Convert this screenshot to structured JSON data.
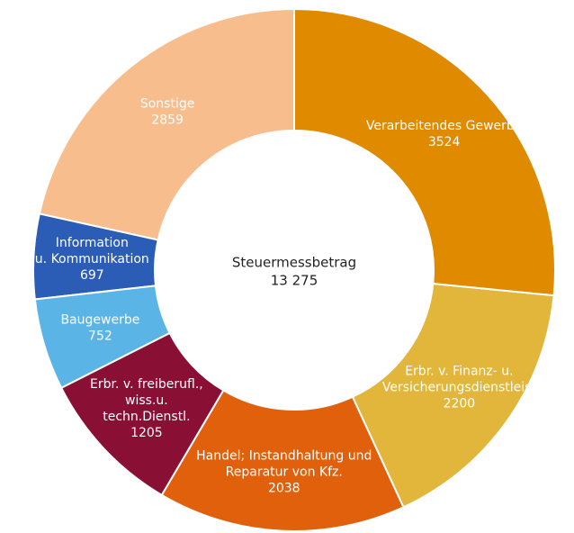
{
  "chart_data": {
    "type": "donut",
    "categories": [
      [
        "Verarbeitendes Gewerbe"
      ],
      [
        "Erbr. v. Finanz- u.",
        "Versicherungsdienstleist"
      ],
      [
        "Handel; Instandhaltung und",
        "Reparatur von Kfz."
      ],
      [
        "Erbr. v. freiberufl.,",
        "wiss.u.",
        "techn.Dienstl."
      ],
      [
        "Baugewerbe"
      ],
      [
        "Information",
        "u. Kommunikation"
      ],
      [
        "Sonstige"
      ]
    ],
    "values": [
      3524,
      2200,
      2038,
      1205,
      752,
      697,
      2859
    ],
    "colors": [
      "#e08a00",
      "#e2b53b",
      "#e0600c",
      "#8a0f35",
      "#5ab5e6",
      "#2b5db7",
      "#f8bd8c"
    ],
    "center_text": [
      "Steuermessbetrag",
      "13 275"
    ]
  }
}
